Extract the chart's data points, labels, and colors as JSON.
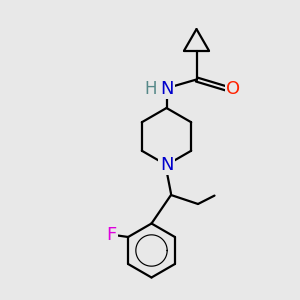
{
  "background_color": "#e8e8e8",
  "atom_colors": {
    "C": "#000000",
    "N": "#0000cc",
    "O": "#ff2200",
    "F": "#dd00dd",
    "H": "#558888"
  },
  "bond_color": "#000000",
  "bond_width": 1.6,
  "font_size_atom": 12
}
